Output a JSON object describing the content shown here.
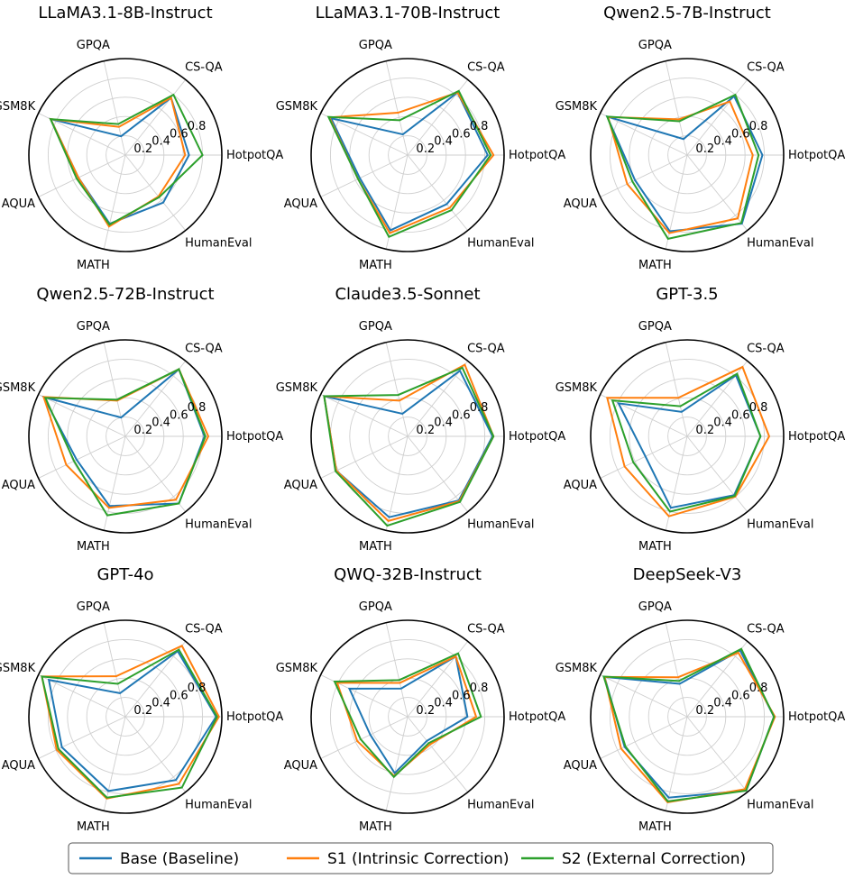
{
  "legend": {
    "placement": "bottom-center",
    "entries": [
      {
        "label": "Base (Baseline)",
        "color": "#1f77b4"
      },
      {
        "label": "S1 (Intrinsic Correction)",
        "color": "#ff7f0e"
      },
      {
        "label": "S2 (External Correction)",
        "color": "#2ca02c"
      }
    ]
  },
  "chart_data": [
    {
      "type": "radar",
      "title": "LLaMA3.1-8B-Instruct",
      "axes": [
        "HotpotQA",
        "CS-QA",
        "GPQA",
        "GSM8K",
        "AQUA",
        "MATH",
        "HumanEval"
      ],
      "rlim": [
        0,
        1
      ],
      "rticks": [
        "0.2",
        "0.4",
        "0.6",
        "0.8"
      ],
      "grid": true,
      "series": [
        {
          "name": "Base (Baseline)",
          "values": [
            0.66,
            0.76,
            0.2,
            0.86,
            0.54,
            0.73,
            0.63
          ]
        },
        {
          "name": "S1 (Intrinsic Correction)",
          "values": [
            0.62,
            0.76,
            0.3,
            0.86,
            0.54,
            0.76,
            0.55
          ]
        },
        {
          "name": "S2 (External Correction)",
          "values": [
            0.8,
            0.8,
            0.33,
            0.86,
            0.56,
            0.74,
            0.56
          ]
        }
      ]
    },
    {
      "type": "radar",
      "title": "LLaMA3.1-70B-Instruct",
      "axes": [
        "HotpotQA",
        "CS-QA",
        "GPQA",
        "GSM8K",
        "AQUA",
        "MATH",
        "HumanEval"
      ],
      "rlim": [
        0,
        1
      ],
      "rticks": [
        "0.2",
        "0.4",
        "0.6",
        "0.8"
      ],
      "grid": true,
      "series": [
        {
          "name": "Base (Baseline)",
          "values": [
            0.83,
            0.83,
            0.22,
            0.88,
            0.55,
            0.8,
            0.65
          ]
        },
        {
          "name": "S1 (Intrinsic Correction)",
          "values": [
            0.89,
            0.83,
            0.45,
            0.9,
            0.57,
            0.83,
            0.7
          ]
        },
        {
          "name": "S2 (External Correction)",
          "values": [
            0.86,
            0.85,
            0.37,
            0.91,
            0.57,
            0.87,
            0.73
          ]
        }
      ]
    },
    {
      "type": "radar",
      "title": "Qwen2.5-7B-Instruct",
      "axes": [
        "HotpotQA",
        "CS-QA",
        "GPQA",
        "GSM8K",
        "AQUA",
        "MATH",
        "HumanEval"
      ],
      "rlim": [
        0,
        1
      ],
      "rticks": [
        "0.2",
        "0.4",
        "0.6",
        "0.8"
      ],
      "grid": true,
      "series": [
        {
          "name": "Base (Baseline)",
          "values": [
            0.78,
            0.78,
            0.17,
            0.92,
            0.6,
            0.81,
            0.91
          ]
        },
        {
          "name": "S1 (Intrinsic Correction)",
          "values": [
            0.68,
            0.71,
            0.38,
            0.91,
            0.69,
            0.83,
            0.84
          ]
        },
        {
          "name": "S2 (External Correction)",
          "values": [
            0.74,
            0.8,
            0.36,
            0.92,
            0.63,
            0.89,
            0.9
          ]
        }
      ]
    },
    {
      "type": "radar",
      "title": "Qwen2.5-72B-Instruct",
      "axes": [
        "HotpotQA",
        "CS-QA",
        "GPQA",
        "GSM8K",
        "AQUA",
        "MATH",
        "HumanEval"
      ],
      "rlim": [
        0,
        1
      ],
      "rticks": [
        "0.2",
        "0.4",
        "0.6",
        "0.8"
      ],
      "grid": true,
      "series": [
        {
          "name": "Base (Baseline)",
          "values": [
            0.82,
            0.89,
            0.2,
            0.94,
            0.56,
            0.74,
            0.89
          ]
        },
        {
          "name": "S1 (Intrinsic Correction)",
          "values": [
            0.86,
            0.89,
            0.38,
            0.94,
            0.68,
            0.76,
            0.84
          ]
        },
        {
          "name": "S2 (External Correction)",
          "values": [
            0.83,
            0.89,
            0.39,
            0.92,
            0.59,
            0.84,
            0.89
          ]
        }
      ]
    },
    {
      "type": "radar",
      "title": "Claude3.5-Sonnet",
      "axes": [
        "HotpotQA",
        "CS-QA",
        "GPQA",
        "GSM8K",
        "AQUA",
        "MATH",
        "HumanEval"
      ],
      "rlim": [
        0,
        1
      ],
      "rticks": [
        "0.2",
        "0.4",
        "0.6",
        "0.8"
      ],
      "grid": true,
      "series": [
        {
          "name": "Base (Baseline)",
          "values": [
            0.88,
            0.87,
            0.24,
            0.96,
            0.82,
            0.86,
            0.85
          ]
        },
        {
          "name": "S1 (Intrinsic Correction)",
          "values": [
            0.89,
            0.95,
            0.38,
            0.96,
            0.82,
            0.9,
            0.86
          ]
        },
        {
          "name": "S2 (External Correction)",
          "values": [
            0.89,
            0.91,
            0.44,
            0.96,
            0.83,
            0.95,
            0.87
          ]
        }
      ]
    },
    {
      "type": "radar",
      "title": "GPT-3.5",
      "axes": [
        "HotpotQA",
        "CS-QA",
        "GPQA",
        "GSM8K",
        "AQUA",
        "MATH",
        "HumanEval"
      ],
      "rlim": [
        0,
        1
      ],
      "rticks": [
        "0.2",
        "0.4",
        "0.6",
        "0.8"
      ],
      "grid": true,
      "series": [
        {
          "name": "Base (Baseline)",
          "values": [
            0.76,
            0.81,
            0.26,
            0.79,
            0.48,
            0.76,
            0.78
          ]
        },
        {
          "name": "S1 (Intrinsic Correction)",
          "values": [
            0.85,
            0.92,
            0.41,
            0.92,
            0.72,
            0.85,
            0.8
          ]
        },
        {
          "name": "S2 (External Correction)",
          "values": [
            0.76,
            0.83,
            0.32,
            0.86,
            0.62,
            0.8,
            0.79
          ]
        }
      ]
    },
    {
      "type": "radar",
      "title": "GPT-4o",
      "axes": [
        "HotpotQA",
        "CS-QA",
        "GPQA",
        "GSM8K",
        "AQUA",
        "MATH",
        "HumanEval"
      ],
      "rlim": [
        0,
        1
      ],
      "rticks": [
        "0.2",
        "0.4",
        "0.6",
        "0.8"
      ],
      "grid": true,
      "series": [
        {
          "name": "Base (Baseline)",
          "values": [
            0.94,
            0.87,
            0.25,
            0.88,
            0.73,
            0.79,
            0.84
          ]
        },
        {
          "name": "S1 (Intrinsic Correction)",
          "values": [
            0.97,
            0.94,
            0.43,
            0.96,
            0.79,
            0.87,
            0.89
          ]
        },
        {
          "name": "S2 (External Correction)",
          "values": [
            0.95,
            0.89,
            0.35,
            0.96,
            0.77,
            0.86,
            0.94
          ]
        }
      ]
    },
    {
      "type": "radar",
      "title": "QWQ-32B-Instruct",
      "axes": [
        "HotpotQA",
        "CS-QA",
        "GPQA",
        "GSM8K",
        "AQUA",
        "MATH",
        "HumanEval"
      ],
      "rlim": [
        0,
        1
      ],
      "rticks": [
        "0.2",
        "0.4",
        "0.6",
        "0.8"
      ],
      "grid": true,
      "series": [
        {
          "name": "Base (Baseline)",
          "values": [
            0.62,
            0.8,
            0.3,
            0.67,
            0.43,
            0.6,
            0.32
          ]
        },
        {
          "name": "S1 (Intrinsic Correction)",
          "values": [
            0.71,
            0.8,
            0.36,
            0.81,
            0.58,
            0.63,
            0.37
          ]
        },
        {
          "name": "S2 (External Correction)",
          "values": [
            0.76,
            0.84,
            0.39,
            0.84,
            0.54,
            0.64,
            0.35
          ]
        }
      ]
    },
    {
      "type": "radar",
      "title": "DeepSeek-V3",
      "axes": [
        "HotpotQA",
        "CS-QA",
        "GPQA",
        "GSM8K",
        "AQUA",
        "MATH",
        "HumanEval"
      ],
      "rlim": [
        0,
        1
      ],
      "rticks": [
        "0.2",
        "0.4",
        "0.6",
        "0.8"
      ],
      "grid": true,
      "series": [
        {
          "name": "Base (Baseline)",
          "values": [
            0.9,
            0.88,
            0.35,
            0.95,
            0.72,
            0.86,
            0.98
          ]
        },
        {
          "name": "S1 (Intrinsic Correction)",
          "values": [
            0.91,
            0.85,
            0.42,
            0.95,
            0.76,
            0.91,
            0.96
          ]
        },
        {
          "name": "S2 (External Correction)",
          "values": [
            0.9,
            0.9,
            0.38,
            0.96,
            0.71,
            0.9,
            0.98
          ]
        }
      ]
    }
  ]
}
